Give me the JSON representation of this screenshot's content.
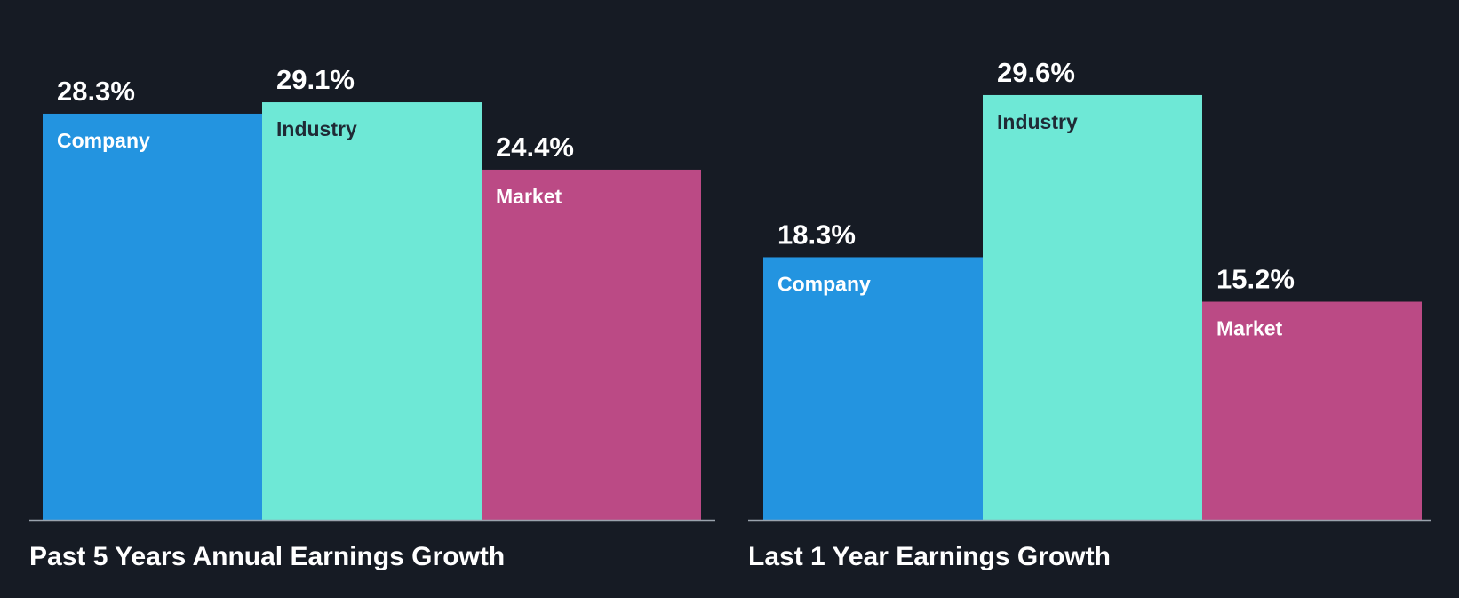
{
  "chart_data": [
    {
      "type": "bar",
      "title": "Past 5 Years Annual Earnings Growth",
      "categories": [
        "Company",
        "Industry",
        "Market"
      ],
      "values": [
        28.3,
        29.1,
        24.4
      ],
      "value_labels": [
        "28.3%",
        "29.1%",
        "24.4%"
      ],
      "unit": "%",
      "ylim": [
        0,
        30
      ],
      "grid": false,
      "legend": "none",
      "colors": [
        "#2394e0",
        "#6ee8d6",
        "#bb4a85"
      ],
      "label_colors": [
        "#ffffff",
        "#1f2a35",
        "#ffffff"
      ]
    },
    {
      "type": "bar",
      "title": "Last 1 Year Earnings Growth",
      "categories": [
        "Company",
        "Industry",
        "Market"
      ],
      "values": [
        18.3,
        29.6,
        15.2
      ],
      "value_labels": [
        "18.3%",
        "29.6%",
        "15.2%"
      ],
      "unit": "%",
      "ylim": [
        0,
        30
      ],
      "grid": false,
      "legend": "none",
      "colors": [
        "#2394e0",
        "#6ee8d6",
        "#bb4a85"
      ],
      "label_colors": [
        "#ffffff",
        "#1f2a35",
        "#ffffff"
      ]
    }
  ],
  "theme": {
    "background": "#161b24",
    "axis_color": "#9aa3ad",
    "text_color": "#ffffff"
  }
}
